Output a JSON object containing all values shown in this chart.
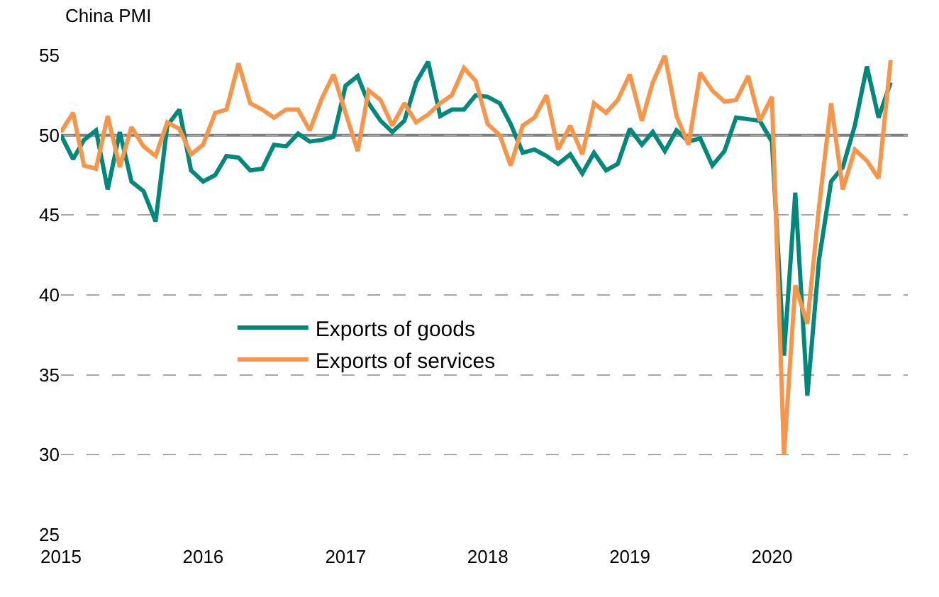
{
  "chart_data": {
    "type": "line",
    "title": "China PMI",
    "x": [
      "2015-01",
      "2015-02",
      "2015-03",
      "2015-04",
      "2015-05",
      "2015-06",
      "2015-07",
      "2015-08",
      "2015-09",
      "2015-10",
      "2015-11",
      "2015-12",
      "2016-01",
      "2016-02",
      "2016-03",
      "2016-04",
      "2016-05",
      "2016-06",
      "2016-07",
      "2016-08",
      "2016-09",
      "2016-10",
      "2016-11",
      "2016-12",
      "2017-01",
      "2017-02",
      "2017-03",
      "2017-04",
      "2017-05",
      "2017-06",
      "2017-07",
      "2017-08",
      "2017-09",
      "2017-10",
      "2017-11",
      "2017-12",
      "2018-01",
      "2018-02",
      "2018-03",
      "2018-04",
      "2018-05",
      "2018-06",
      "2018-07",
      "2018-08",
      "2018-09",
      "2018-10",
      "2018-11",
      "2018-12",
      "2019-01",
      "2019-02",
      "2019-03",
      "2019-04",
      "2019-05",
      "2019-06",
      "2019-07",
      "2019-08",
      "2019-09",
      "2019-10",
      "2019-11",
      "2019-12",
      "2020-01",
      "2020-02",
      "2020-03",
      "2020-04",
      "2020-05",
      "2020-06",
      "2020-07",
      "2020-08",
      "2020-09",
      "2020-10",
      "2020-11"
    ],
    "series": [
      {
        "name": "Exports of goods",
        "color": "#00897b",
        "values": [
          50.0,
          48.5,
          49.7,
          50.3,
          46.6,
          50.2,
          47.1,
          46.5,
          44.6,
          50.6,
          51.6,
          47.8,
          47.1,
          47.5,
          48.7,
          48.6,
          47.8,
          47.9,
          49.4,
          49.3,
          50.1,
          49.6,
          49.7,
          49.9,
          53.1,
          53.7,
          52.0,
          50.9,
          50.2,
          50.9,
          53.3,
          54.6,
          51.2,
          51.6,
          51.6,
          52.5,
          52.4,
          52.0,
          50.7,
          48.9,
          49.1,
          48.7,
          48.2,
          48.8,
          47.6,
          48.9,
          47.8,
          48.2,
          50.4,
          49.4,
          50.2,
          49.0,
          50.3,
          49.6,
          49.8,
          48.1,
          49.0,
          51.1,
          51.0,
          50.9,
          49.6,
          36.2,
          46.4,
          33.7,
          42.2,
          47.1,
          48.0,
          50.6,
          54.3,
          51.1,
          53.3
        ]
      },
      {
        "name": "Exports of services",
        "color": "#f7964a",
        "values": [
          50.2,
          51.4,
          48.1,
          47.9,
          51.2,
          48.0,
          50.5,
          49.3,
          48.7,
          50.8,
          50.4,
          48.8,
          49.4,
          51.4,
          51.6,
          54.5,
          52.0,
          51.6,
          51.1,
          51.6,
          51.6,
          50.3,
          52.3,
          53.8,
          51.4,
          49.0,
          52.8,
          52.2,
          50.6,
          52.0,
          50.8,
          51.3,
          52.0,
          52.5,
          54.2,
          53.4,
          50.7,
          50.0,
          48.1,
          50.6,
          51.1,
          52.5,
          49.1,
          50.6,
          48.8,
          52.0,
          51.4,
          52.2,
          53.8,
          50.9,
          53.3,
          55.0,
          51.2,
          49.4,
          53.9,
          52.8,
          52.1,
          52.2,
          53.7,
          50.9,
          52.4,
          30.0,
          40.6,
          38.2,
          45.5,
          52.0,
          46.6,
          49.1,
          48.4,
          47.3,
          54.7
        ]
      }
    ],
    "xlim": [
      "2015-01",
      "2020-12-15"
    ],
    "xticks": [
      "2015",
      "2016",
      "2017",
      "2018",
      "2019",
      "2020"
    ],
    "ylim": [
      25,
      55
    ],
    "yticks": [
      25,
      30,
      35,
      40,
      45,
      50,
      55
    ],
    "ref_lines": [
      {
        "axis": "y",
        "value": 50,
        "color": "#808080"
      }
    ],
    "grid": "y",
    "legend": "left",
    "marker": "none",
    "line_style": "solid"
  }
}
